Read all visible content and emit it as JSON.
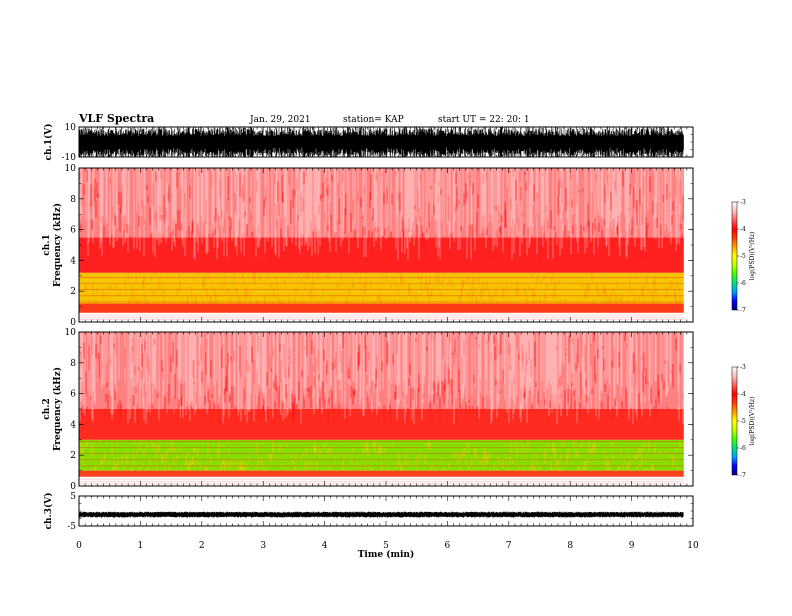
{
  "header": {
    "title": "VLF Spectra",
    "date": "Jan. 29, 2021",
    "station": "station= KAP",
    "start": "start  UT  =   22: 20: 1"
  },
  "chart_data": [
    {
      "type": "line",
      "name": "ch1-waveform",
      "ylabel": "ch.1(V)",
      "ylim": [
        -10,
        10
      ],
      "yticks": [
        "10",
        "-10"
      ],
      "description_level": "saturated noisy waveform"
    },
    {
      "type": "heatmap",
      "name": "ch1-spectrogram",
      "ylabel": "ch.1\nFrequency (kHz)",
      "ylabel_line1": "ch.1",
      "ylabel_line2": "Frequency  (kHz)",
      "ylim": [
        0,
        10
      ],
      "yticks": [
        "0",
        "2",
        "4",
        "6",
        "8",
        "10"
      ],
      "bands": [
        {
          "from": 0.0,
          "to": 0.6,
          "color": "#ffffff"
        },
        {
          "from": 0.6,
          "to": 1.2,
          "color": "#ff3a1a"
        },
        {
          "from": 1.2,
          "to": 3.2,
          "color": "#f6c400"
        },
        {
          "from": 3.2,
          "to": 5.5,
          "color": "#ff2020"
        },
        {
          "from": 5.5,
          "to": 10.0,
          "color": "#ff8080"
        }
      ],
      "colorbar": {
        "label": "log(PSD)(V²/Hz)",
        "range": [
          -7,
          -3
        ],
        "ticks": [
          "-3",
          "-4",
          "-5",
          "-6",
          "-7"
        ]
      }
    },
    {
      "type": "heatmap",
      "name": "ch2-spectrogram",
      "ylabel_line1": "ch.2",
      "ylabel_line2": "Frequency  (kHz)",
      "ylim": [
        0,
        10
      ],
      "yticks": [
        "0",
        "2",
        "4",
        "6",
        "8",
        "10"
      ],
      "bands": [
        {
          "from": 0.0,
          "to": 0.6,
          "color": "#ffffff"
        },
        {
          "from": 0.6,
          "to": 1.0,
          "color": "#ff4020"
        },
        {
          "from": 1.0,
          "to": 3.0,
          "color": "#88dd00"
        },
        {
          "from": 3.0,
          "to": 5.0,
          "color": "#ff2a20"
        },
        {
          "from": 5.0,
          "to": 10.0,
          "color": "#ff8080"
        }
      ],
      "colorbar": {
        "label": "log(PSD)(V²/Hz)",
        "range": [
          -7,
          -3
        ],
        "ticks": [
          "-3",
          "-4",
          "-5",
          "-6",
          "-7"
        ]
      }
    },
    {
      "type": "line",
      "name": "ch3-waveform",
      "ylabel": "ch.3(V)",
      "ylim": [
        -5,
        5
      ],
      "yticks": [
        "5",
        "-5"
      ],
      "level": -1.2
    }
  ],
  "xaxis": {
    "label": "Time  (min)",
    "xlim": [
      0,
      10
    ],
    "ticks": [
      "0",
      "1",
      "2",
      "3",
      "4",
      "5",
      "6",
      "7",
      "8",
      "9",
      "10"
    ],
    "data_end": 9.85
  },
  "colorbar_colors": [
    "#000080",
    "#0000ff",
    "#00a0ff",
    "#00e080",
    "#40ff00",
    "#c0ff00",
    "#ffff00",
    "#ffa000",
    "#ff4000",
    "#ff0000",
    "#ff6060",
    "#ffc0c0",
    "#ffffff"
  ]
}
